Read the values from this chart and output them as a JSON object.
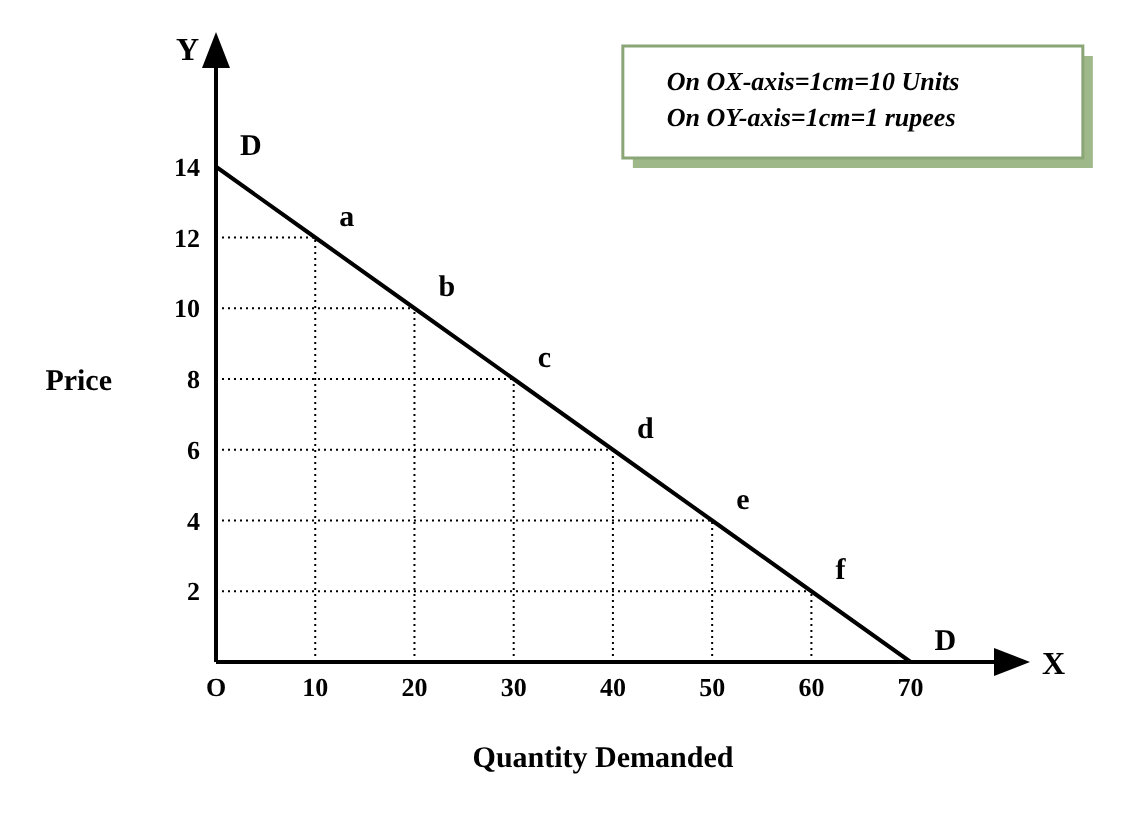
{
  "chart_data": {
    "type": "line",
    "xlabel": "Quantity Demanded",
    "ylabel": "Price",
    "x": [
      0,
      10,
      20,
      30,
      40,
      50,
      60,
      70
    ],
    "series": [
      {
        "color": "#000000",
        "values": [
          14,
          12,
          10,
          8,
          6,
          4,
          2,
          0
        ]
      }
    ],
    "xlim": [
      0,
      78
    ],
    "ylim": [
      0,
      16
    ],
    "xticks": [
      {
        "value": 0,
        "label": "O"
      },
      10,
      20,
      30,
      40,
      50,
      60,
      70
    ],
    "yticks": [
      2,
      4,
      6,
      8,
      10,
      12,
      14
    ],
    "grid": true,
    "marker": "none",
    "legend": false,
    "annotations": [
      "Y",
      "X",
      "On OX-axis=1cm=10 Units",
      "On OY-axis=1cm=1 rupees",
      {
        "text": "D",
        "x": 0,
        "y": 14
      },
      {
        "text": "a",
        "x": 10,
        "y": 12
      },
      {
        "text": "b",
        "x": 20,
        "y": 10
      },
      {
        "text": "c",
        "x": 30,
        "y": 8
      },
      {
        "text": "d",
        "x": 40,
        "y": 6
      },
      {
        "text": "e",
        "x": 50,
        "y": 4
      },
      {
        "text": "f",
        "x": 60,
        "y": 2
      },
      {
        "text": "D",
        "x": 70,
        "y": 0
      }
    ]
  }
}
